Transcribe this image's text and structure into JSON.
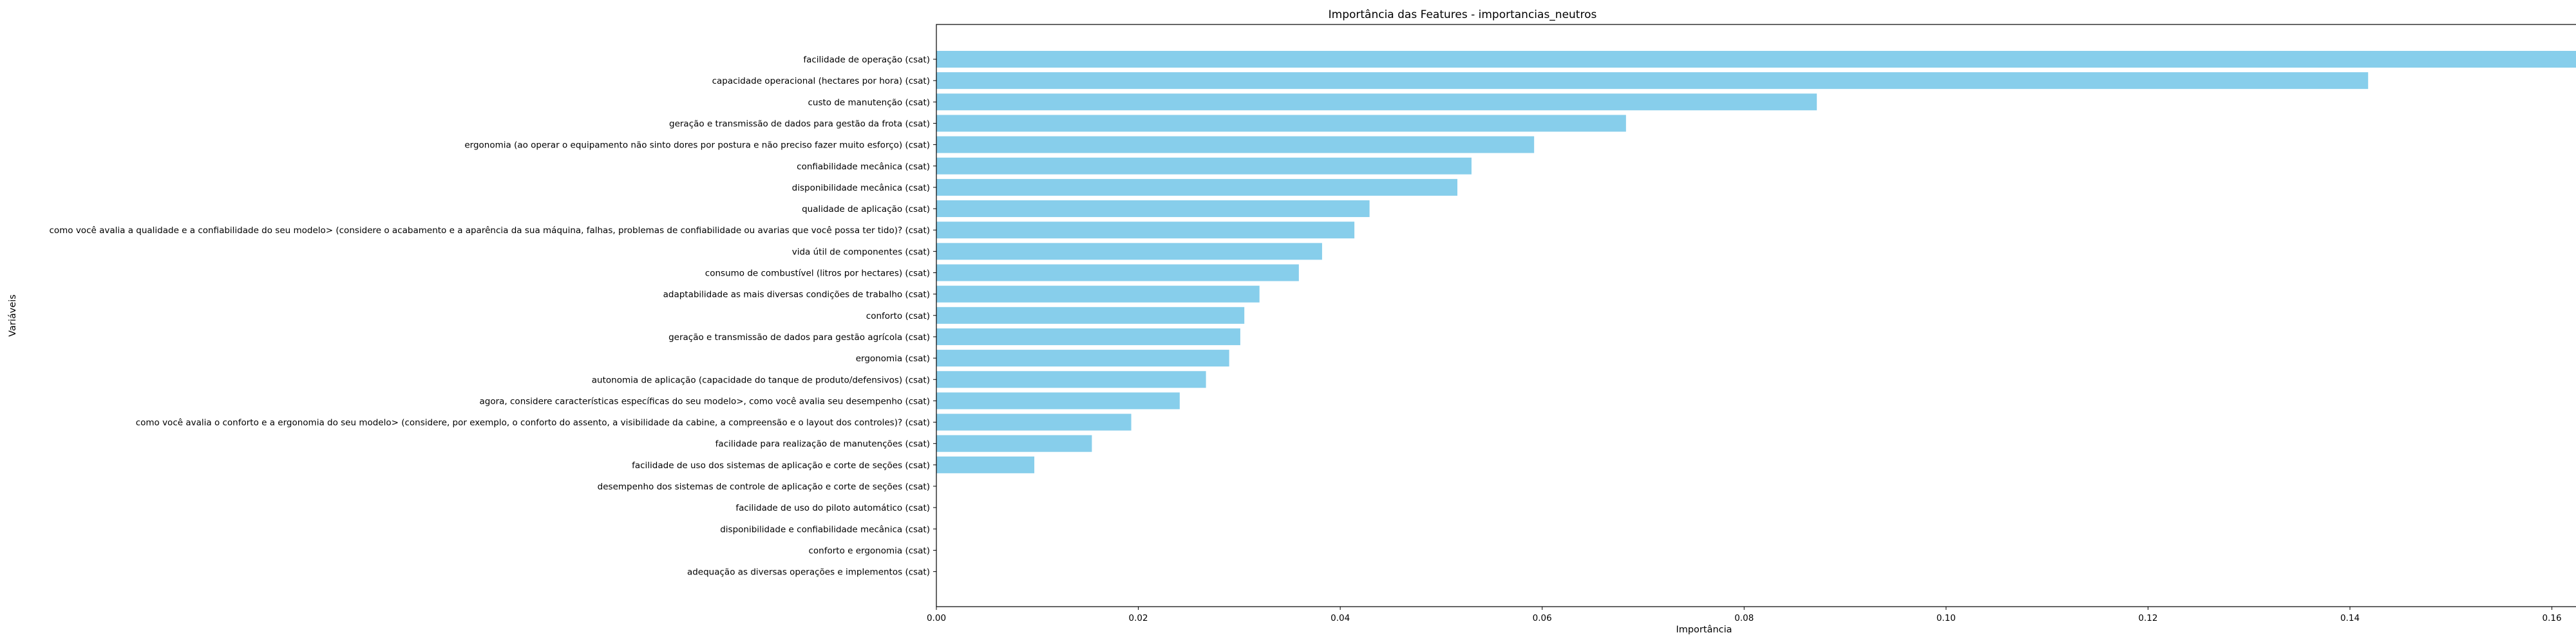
{
  "chart_data": {
    "type": "bar",
    "orientation": "horizontal",
    "title": "Importância das Features - importancias_neutros",
    "xlabel": "Importância",
    "ylabel": "Variáveis",
    "xlim": [
      0,
      0.168
    ],
    "xticks": [
      "0.00",
      "0.02",
      "0.04",
      "0.06",
      "0.08",
      "0.10",
      "0.12",
      "0.14",
      "0.16"
    ],
    "grid": false,
    "bar_color": "#87CEEB",
    "categories": [
      "facilidade de operação (csat)",
      "capacidade operacional (hectares por hora) (csat)",
      "custo de manutenção (csat)",
      "geração e transmissão de dados para gestão da frota (csat)",
      "ergonomia (ao operar o equipamento não sinto dores por postura e não preciso fazer muito esforço) (csat)",
      "confiabilidade mecânica (csat)",
      "disponibilidade mecânica (csat)",
      "qualidade de aplicação (csat)",
      "como você avalia a qualidade e a confiabilidade do seu modelo> (considere o acabamento e a aparência da sua máquina, falhas, problemas de confiabilidade ou avarias que você possa ter tido)? (csat)",
      "vida útil de componentes (csat)",
      "consumo de combustível (litros por hectares) (csat)",
      "adaptabilidade as mais diversas condições de trabalho (csat)",
      "conforto (csat)",
      "geração e transmissão de dados para gestão agrícola (csat)",
      "ergonomia (csat)",
      "autonomia de aplicação (capacidade do tanque de produto/defensivos) (csat)",
      "agora, considere características específicas do seu modelo>, como você avalia seu desempenho (csat)",
      "como você avalia o conforto e a ergonomia do seu modelo>  (considere, por exemplo, o conforto do assento, a visibilidade da cabine, a compreensão e o layout dos controles)? (csat)",
      "facilidade para realização de manutenções (csat)",
      "facilidade de uso dos sistemas de aplicação e corte de seções (csat)",
      "desempenho dos sistemas de controle de aplicação e corte de seções (csat)",
      "facilidade de uso do piloto automático (csat)",
      "disponibilidade e confiabilidade mecânica  (csat)",
      "conforto e ergonomia (csat)",
      "adequação as diversas operações e implementos (csat)"
    ],
    "values": [
      0.1637,
      0.1418,
      0.0872,
      0.0683,
      0.0592,
      0.053,
      0.0516,
      0.0429,
      0.0414,
      0.0382,
      0.0359,
      0.032,
      0.0305,
      0.0301,
      0.029,
      0.0267,
      0.0241,
      0.0193,
      0.0154,
      0.0097,
      0,
      0,
      0,
      0,
      0
    ]
  }
}
